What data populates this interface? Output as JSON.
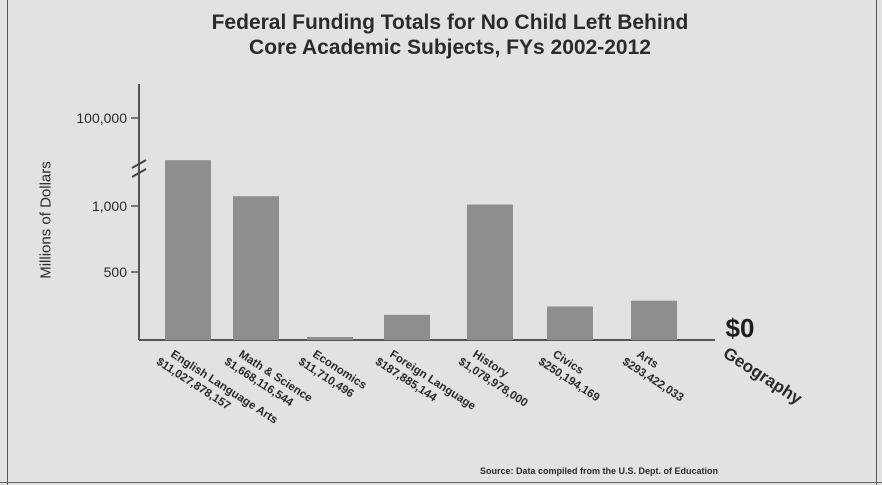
{
  "chart_data": {
    "type": "bar",
    "title": [
      "Federal Funding Totals for No Child Left Behind",
      "Core Academic Subjects, FYs 2002-2012"
    ],
    "ylabel": "Millions of Dollars",
    "yticks": [
      "100,000",
      "1,000",
      "500"
    ],
    "axis_break": true,
    "categories": [
      {
        "name": "English Language Arts",
        "amount": "$11,027,878,157"
      },
      {
        "name": "Math & Science",
        "amount": "$1,668,116,544"
      },
      {
        "name": "Economics",
        "amount": "$11,710,496"
      },
      {
        "name": "Foreign Language",
        "amount": "$187,885,144"
      },
      {
        "name": "History",
        "amount": "$1,078,978,000"
      },
      {
        "name": "Civics",
        "amount": "$250,194,169"
      },
      {
        "name": "Arts",
        "amount": "$293,422,033"
      },
      {
        "name": "Geography",
        "amount": ""
      }
    ],
    "values_millions": [
      11027.878157,
      1668.116544,
      11.710496,
      187.885144,
      1078.978,
      250.194169,
      293.422033,
      0
    ],
    "zero_label": "$0",
    "bar_color": "#8e8e8e",
    "source": "Source: Data compiled from the U.S. Dept. of Education"
  }
}
